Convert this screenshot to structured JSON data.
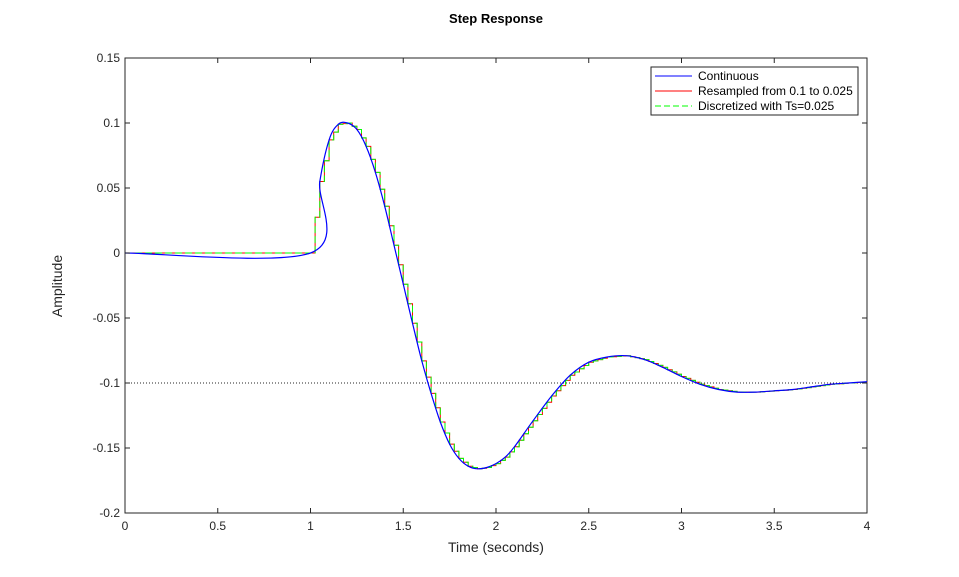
{
  "chart_data": {
    "type": "line",
    "title": "Step Response",
    "xlabel": "Time (seconds)",
    "ylabel": "Amplitude",
    "xlim": [
      0,
      4
    ],
    "ylim": [
      -0.2,
      0.15
    ],
    "x_ticks": [
      0,
      0.5,
      1,
      1.5,
      2,
      2.5,
      3,
      3.5,
      4
    ],
    "x_tick_labels": [
      "0",
      "0.5",
      "1",
      "1.5",
      "2",
      "2.5",
      "3",
      "3.5",
      "4"
    ],
    "y_ticks": [
      0.15,
      0.1,
      0.05,
      0,
      -0.05,
      -0.1,
      -0.15,
      -0.2
    ],
    "y_tick_labels": [
      "0.15",
      "0.1",
      "0.05",
      "0",
      "-0.05",
      "-0.1",
      "-0.15",
      "-0.2"
    ],
    "grid": false,
    "legend_position": "top-right",
    "reference_line": {
      "y": -0.1,
      "style": "dotted"
    },
    "x": [
      0,
      1.0,
      1.05,
      1.1,
      1.15,
      1.2,
      1.25,
      1.3,
      1.35,
      1.4,
      1.45,
      1.5,
      1.55,
      1.6,
      1.65,
      1.7,
      1.75,
      1.8,
      1.85,
      1.9,
      1.95,
      2.0,
      2.05,
      2.1,
      2.2,
      2.3,
      2.4,
      2.5,
      2.6,
      2.7,
      2.8,
      2.9,
      3.0,
      3.1,
      3.2,
      3.3,
      3.4,
      3.5,
      3.6,
      3.7,
      3.8,
      3.9,
      4.0
    ],
    "series": [
      {
        "name": "Continuous",
        "color": "#0000ff",
        "style": "solid",
        "values": [
          0,
          0,
          0.055,
          0.087,
          0.099,
          0.1,
          0.095,
          0.082,
          0.062,
          0.036,
          0.006,
          -0.024,
          -0.054,
          -0.083,
          -0.108,
          -0.13,
          -0.147,
          -0.158,
          -0.164,
          -0.166,
          -0.165,
          -0.162,
          -0.157,
          -0.149,
          -0.129,
          -0.11,
          -0.094,
          -0.084,
          -0.08,
          -0.079,
          -0.082,
          -0.088,
          -0.095,
          -0.101,
          -0.105,
          -0.107,
          -0.107,
          -0.106,
          -0.105,
          -0.103,
          -0.101,
          -0.1,
          -0.099
        ]
      },
      {
        "name": "Resampled from 0.1 to 0.025",
        "color": "#ff0000",
        "style": "step",
        "step": 0.025
      },
      {
        "name": "Discretized with Ts=0.025",
        "color": "#00ff00",
        "style": "dashed-step",
        "step": 0.025
      }
    ]
  }
}
